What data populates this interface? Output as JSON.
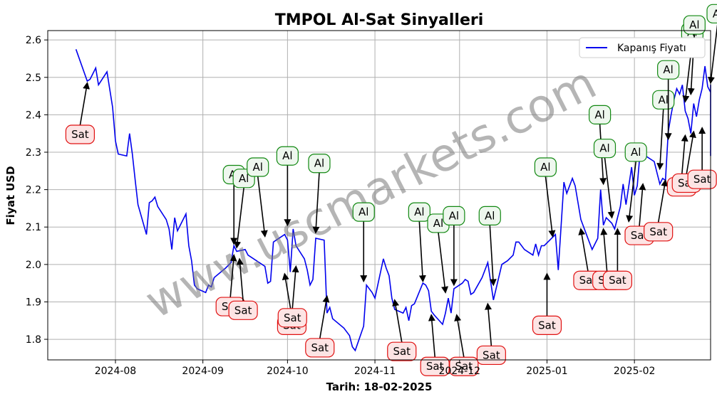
{
  "chart_data": {
    "type": "line",
    "title": "TMPOL Al-Sat Sinyalleri",
    "xlabel": "Tarih: 18-02-2025",
    "ylabel": "Fiyat USD",
    "legend": "Kapanış Fiyatı",
    "watermark": "www.uscmarkets.com",
    "grid": true,
    "legend_position": "top-right",
    "x_ticks": [
      {
        "date": "2024-08-01",
        "label": "2024-08"
      },
      {
        "date": "2024-09-01",
        "label": "2024-09"
      },
      {
        "date": "2024-10-01",
        "label": "2024-10"
      },
      {
        "date": "2024-11-01",
        "label": "2024-11"
      },
      {
        "date": "2024-12-01",
        "label": "2024-12"
      },
      {
        "date": "2025-01-01",
        "label": "2025-01"
      },
      {
        "date": "2025-02-01",
        "label": "2025-02"
      }
    ],
    "y_ticks": [
      1.8,
      1.9,
      2.0,
      2.1,
      2.2,
      2.3,
      2.4,
      2.5,
      2.6
    ],
    "xlim": [
      "2024-07-08",
      "2025-02-28"
    ],
    "ylim": [
      1.745,
      2.625
    ],
    "series": [
      {
        "name": "Kapanış Fiyatı",
        "color": "#0000ee",
        "points": [
          [
            "2024-07-18",
            2.575
          ],
          [
            "2024-07-22",
            2.49
          ],
          [
            "2024-07-23",
            2.495
          ],
          [
            "2024-07-25",
            2.525
          ],
          [
            "2024-07-26",
            2.48
          ],
          [
            "2024-07-29",
            2.515
          ],
          [
            "2024-07-31",
            2.42
          ],
          [
            "2024-08-01",
            2.33
          ],
          [
            "2024-08-02",
            2.295
          ],
          [
            "2024-08-05",
            2.29
          ],
          [
            "2024-08-06",
            2.35
          ],
          [
            "2024-08-07",
            2.295
          ],
          [
            "2024-08-08",
            2.225
          ],
          [
            "2024-08-09",
            2.16
          ],
          [
            "2024-08-12",
            2.08
          ],
          [
            "2024-08-13",
            2.165
          ],
          [
            "2024-08-14",
            2.17
          ],
          [
            "2024-08-15",
            2.18
          ],
          [
            "2024-08-16",
            2.155
          ],
          [
            "2024-08-19",
            2.12
          ],
          [
            "2024-08-20",
            2.095
          ],
          [
            "2024-08-21",
            2.04
          ],
          [
            "2024-08-22",
            2.125
          ],
          [
            "2024-08-23",
            2.09
          ],
          [
            "2024-08-26",
            2.135
          ],
          [
            "2024-08-27",
            2.05
          ],
          [
            "2024-08-28",
            2.01
          ],
          [
            "2024-08-29",
            1.945
          ],
          [
            "2024-08-30",
            1.935
          ],
          [
            "2024-09-02",
            1.925
          ],
          [
            "2024-09-03",
            1.945
          ],
          [
            "2024-09-04",
            1.94
          ],
          [
            "2024-09-05",
            1.965
          ],
          [
            "2024-09-09",
            1.99
          ],
          [
            "2024-09-11",
            2.005
          ],
          [
            "2024-09-12",
            2.05
          ],
          [
            "2024-09-13",
            2.035
          ],
          [
            "2024-09-16",
            2.04
          ],
          [
            "2024-09-17",
            2.025
          ],
          [
            "2024-09-19",
            2.015
          ],
          [
            "2024-09-23",
            1.995
          ],
          [
            "2024-09-24",
            1.95
          ],
          [
            "2024-09-25",
            1.955
          ],
          [
            "2024-09-26",
            2.06
          ],
          [
            "2024-09-27",
            2.065
          ],
          [
            "2024-09-30",
            2.08
          ],
          [
            "2024-10-01",
            2.065
          ],
          [
            "2024-10-02",
            1.98
          ],
          [
            "2024-10-03",
            2.095
          ],
          [
            "2024-10-04",
            2.05
          ],
          [
            "2024-10-07",
            2.015
          ],
          [
            "2024-10-08",
            1.985
          ],
          [
            "2024-10-09",
            1.945
          ],
          [
            "2024-10-10",
            1.96
          ],
          [
            "2024-10-11",
            2.07
          ],
          [
            "2024-10-14",
            2.065
          ],
          [
            "2024-10-15",
            1.87
          ],
          [
            "2024-10-16",
            1.885
          ],
          [
            "2024-10-17",
            1.855
          ],
          [
            "2024-10-21",
            1.83
          ],
          [
            "2024-10-23",
            1.81
          ],
          [
            "2024-10-24",
            1.78
          ],
          [
            "2024-10-25",
            1.77
          ],
          [
            "2024-10-28",
            1.835
          ],
          [
            "2024-10-29",
            1.945
          ],
          [
            "2024-10-31",
            1.925
          ],
          [
            "2024-11-01",
            1.91
          ],
          [
            "2024-11-04",
            2.015
          ],
          [
            "2024-11-05",
            1.99
          ],
          [
            "2024-11-06",
            1.97
          ],
          [
            "2024-11-07",
            1.91
          ],
          [
            "2024-11-08",
            1.88
          ],
          [
            "2024-11-11",
            1.87
          ],
          [
            "2024-11-12",
            1.885
          ],
          [
            "2024-11-13",
            1.85
          ],
          [
            "2024-11-14",
            1.89
          ],
          [
            "2024-11-15",
            1.895
          ],
          [
            "2024-11-18",
            1.95
          ],
          [
            "2024-11-19",
            1.945
          ],
          [
            "2024-11-20",
            1.93
          ],
          [
            "2024-11-21",
            1.875
          ],
          [
            "2024-11-22",
            1.865
          ],
          [
            "2024-11-25",
            1.84
          ],
          [
            "2024-11-26",
            1.87
          ],
          [
            "2024-11-27",
            1.91
          ],
          [
            "2024-11-28",
            1.87
          ],
          [
            "2024-11-29",
            1.935
          ],
          [
            "2024-12-02",
            1.95
          ],
          [
            "2024-12-03",
            1.96
          ],
          [
            "2024-12-04",
            1.955
          ],
          [
            "2024-12-05",
            1.92
          ],
          [
            "2024-12-06",
            1.925
          ],
          [
            "2024-12-09",
            1.965
          ],
          [
            "2024-12-11",
            2.005
          ],
          [
            "2024-12-13",
            1.905
          ],
          [
            "2024-12-16",
            2.0
          ],
          [
            "2024-12-18",
            2.01
          ],
          [
            "2024-12-20",
            2.025
          ],
          [
            "2024-12-21",
            2.06
          ],
          [
            "2024-12-22",
            2.06
          ],
          [
            "2024-12-24",
            2.04
          ],
          [
            "2024-12-27",
            2.025
          ],
          [
            "2024-12-28",
            2.055
          ],
          [
            "2024-12-29",
            2.025
          ],
          [
            "2024-12-30",
            2.05
          ],
          [
            "2024-12-31",
            2.05
          ],
          [
            "2025-01-02",
            2.065
          ],
          [
            "2025-01-04",
            2.08
          ],
          [
            "2025-01-05",
            1.985
          ],
          [
            "2025-01-07",
            2.22
          ],
          [
            "2025-01-08",
            2.19
          ],
          [
            "2025-01-10",
            2.23
          ],
          [
            "2025-01-11",
            2.21
          ],
          [
            "2025-01-13",
            2.12
          ],
          [
            "2025-01-16",
            2.06
          ],
          [
            "2025-01-17",
            2.04
          ],
          [
            "2025-01-19",
            2.07
          ],
          [
            "2025-01-20",
            2.2
          ],
          [
            "2025-01-21",
            2.105
          ],
          [
            "2025-01-22",
            2.125
          ],
          [
            "2025-01-24",
            2.11
          ],
          [
            "2025-01-25",
            2.095
          ],
          [
            "2025-01-27",
            2.155
          ],
          [
            "2025-01-28",
            2.215
          ],
          [
            "2025-01-29",
            2.16
          ],
          [
            "2025-01-31",
            2.26
          ],
          [
            "2025-02-01",
            2.185
          ],
          [
            "2025-02-02",
            2.21
          ],
          [
            "2025-02-03",
            2.3
          ],
          [
            "2025-02-05",
            2.29
          ],
          [
            "2025-02-07",
            2.28
          ],
          [
            "2025-02-08",
            2.275
          ],
          [
            "2025-02-09",
            2.245
          ],
          [
            "2025-02-10",
            2.215
          ],
          [
            "2025-02-11",
            2.23
          ],
          [
            "2025-02-12",
            2.225
          ],
          [
            "2025-02-13",
            2.355
          ],
          [
            "2025-02-14",
            2.4
          ],
          [
            "2025-02-15",
            2.44
          ],
          [
            "2025-02-16",
            2.47
          ],
          [
            "2025-02-17",
            2.455
          ],
          [
            "2025-02-18",
            2.48
          ],
          [
            "2025-02-19",
            2.41
          ],
          [
            "2025-02-20",
            2.39
          ],
          [
            "2025-02-21",
            2.35
          ],
          [
            "2025-02-22",
            2.43
          ],
          [
            "2025-02-23",
            2.395
          ],
          [
            "2025-02-24",
            2.44
          ],
          [
            "2025-02-25",
            2.47
          ],
          [
            "2025-02-26",
            2.53
          ],
          [
            "2025-02-27",
            2.475
          ],
          [
            "2025-02-28",
            2.46
          ],
          [
            "2025-02-28",
            2.36
          ],
          [
            "2025-02-28",
            2.29
          ],
          [
            "2025-02-28",
            2.48
          ]
        ]
      }
    ],
    "signals": [
      {
        "label": "Sat",
        "type": "sell",
        "date": "2024-07-22",
        "y": 2.49
      },
      {
        "label": "Al",
        "type": "buy",
        "date": "2024-09-12",
        "y": 2.05
      },
      {
        "label": "Al",
        "type": "buy",
        "date": "2024-09-13",
        "y": 2.04
      },
      {
        "label": "Sat",
        "type": "sell",
        "date": "2024-09-12",
        "y": 2.03
      },
      {
        "label": "Sat",
        "type": "sell",
        "date": "2024-09-14",
        "y": 2.02
      },
      {
        "label": "Al",
        "type": "buy",
        "date": "2024-09-23",
        "y": 2.07
      },
      {
        "label": "Al",
        "type": "buy",
        "date": "2024-10-01",
        "y": 2.1
      },
      {
        "label": "Sat",
        "type": "sell",
        "date": "2024-09-30",
        "y": 1.98
      },
      {
        "label": "Sat",
        "type": "sell",
        "date": "2024-10-04",
        "y": 2.0
      },
      {
        "label": "Al",
        "type": "buy",
        "date": "2024-10-11",
        "y": 2.08
      },
      {
        "label": "Sat",
        "type": "sell",
        "date": "2024-10-15",
        "y": 1.92
      },
      {
        "label": "Al",
        "type": "buy",
        "date": "2024-10-28",
        "y": 1.95
      },
      {
        "label": "Sat",
        "type": "sell",
        "date": "2024-11-08",
        "y": 1.91
      },
      {
        "label": "Al",
        "type": "buy",
        "date": "2024-11-18",
        "y": 1.95
      },
      {
        "label": "Sat",
        "type": "sell",
        "date": "2024-11-21",
        "y": 1.87
      },
      {
        "label": "Al",
        "type": "buy",
        "date": "2024-11-26",
        "y": 1.92
      },
      {
        "label": "Al",
        "type": "buy",
        "date": "2024-11-29",
        "y": 1.94
      },
      {
        "label": "Sat",
        "type": "sell",
        "date": "2024-11-30",
        "y": 1.87
      },
      {
        "label": "Al",
        "type": "buy",
        "date": "2024-12-13",
        "y": 1.94
      },
      {
        "label": "Sat",
        "type": "sell",
        "date": "2024-12-11",
        "y": 1.9
      },
      {
        "label": "Al",
        "type": "buy",
        "date": "2025-01-03",
        "y": 2.07
      },
      {
        "label": "Sat",
        "type": "sell",
        "date": "2025-01-01",
        "y": 1.98
      },
      {
        "label": "Sat",
        "type": "sell",
        "date": "2025-01-13",
        "y": 2.1
      },
      {
        "label": "Al",
        "type": "buy",
        "date": "2025-01-21",
        "y": 2.21
      },
      {
        "label": "Sat",
        "type": "sell",
        "date": "2025-01-21",
        "y": 2.1
      },
      {
        "label": "Al",
        "type": "buy",
        "date": "2025-01-24",
        "y": 2.12
      },
      {
        "label": "Sat",
        "type": "sell",
        "date": "2025-01-26",
        "y": 2.1
      },
      {
        "label": "Al",
        "type": "buy",
        "date": "2025-01-30",
        "y": 2.11
      },
      {
        "label": "Sat",
        "type": "sell",
        "date": "2025-02-04",
        "y": 2.22
      },
      {
        "label": "Al",
        "type": "buy",
        "date": "2025-02-10",
        "y": 2.25
      },
      {
        "label": "Sat",
        "type": "sell",
        "date": "2025-02-12",
        "y": 2.23
      },
      {
        "label": "Al",
        "type": "buy",
        "date": "2025-02-13",
        "y": 2.33
      },
      {
        "label": "Al",
        "type": "buy",
        "date": "2025-02-19",
        "y": 2.43
      },
      {
        "label": "Sat",
        "type": "sell",
        "date": "2025-02-19",
        "y": 2.35
      },
      {
        "label": "Al",
        "type": "buy",
        "date": "2025-02-21",
        "y": 2.45
      },
      {
        "label": "Sat",
        "type": "sell",
        "date": "2025-02-22",
        "y": 2.36
      },
      {
        "label": "Sat",
        "type": "sell",
        "date": "2025-02-25",
        "y": 2.37
      },
      {
        "label": "Al",
        "type": "buy",
        "date": "2025-02-28",
        "y": 2.48
      }
    ]
  }
}
